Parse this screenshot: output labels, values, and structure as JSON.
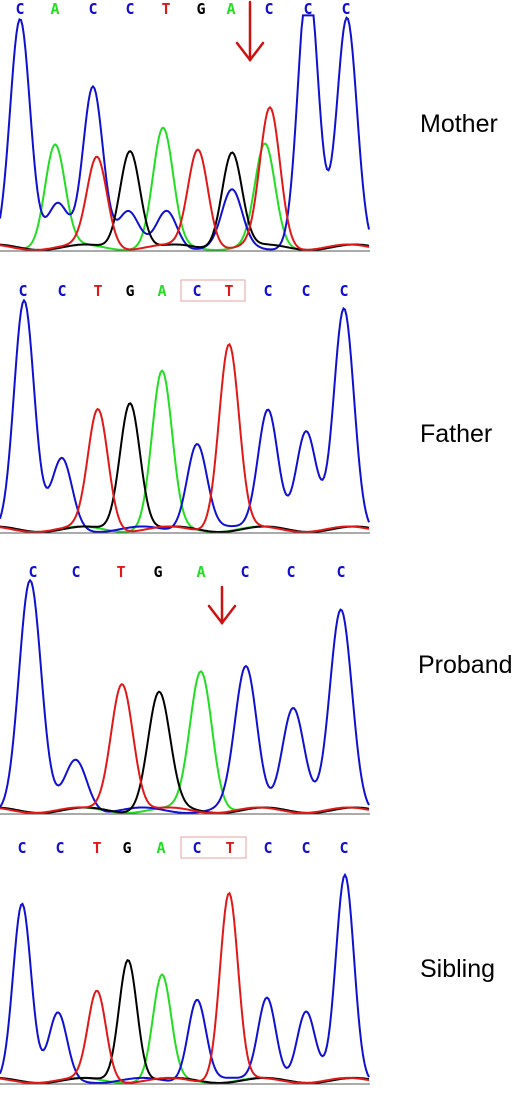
{
  "colors": {
    "A": "#22dd22",
    "C": "#1010d0",
    "G": "#000000",
    "T": "#e01818",
    "arrow": "#cc1111",
    "box": "#e8a0a0"
  },
  "icons": {
    "arrow": "down-arrow-icon"
  },
  "panels": [
    {
      "label": "Mother",
      "bases": [
        "C",
        "A",
        "C",
        "C",
        "T",
        "G",
        "A",
        "C",
        "C",
        "C"
      ],
      "mutation_arrow_at_base": 6,
      "boxed_bases": [],
      "peaks": [
        {
          "base": "C",
          "level": 1.0
        },
        {
          "base": "A",
          "level": 0.45
        },
        {
          "base": "C",
          "level": 0.18
        },
        {
          "base": "C",
          "level": 0.71
        },
        {
          "base": "T",
          "level": 0.39
        },
        {
          "base": "C",
          "level": 0.15
        },
        {
          "base": "G",
          "level": 0.43
        },
        {
          "base": "A",
          "level": 0.51
        },
        {
          "base": "C",
          "level": 0.16
        },
        {
          "base": "T",
          "level": 0.43
        },
        {
          "base": "G",
          "level": 0.42
        },
        {
          "base": "C",
          "level": 0.24
        },
        {
          "base": "T",
          "level": 0.6
        },
        {
          "base": "A",
          "level": 0.44
        },
        {
          "base": "C",
          "level": 0.67
        },
        {
          "base": "C",
          "level": 0.5
        },
        {
          "base": "C",
          "level": 1.0
        }
      ]
    },
    {
      "label": "Father",
      "bases": [
        "C",
        "C",
        "T",
        "G",
        "A",
        "C",
        "T",
        "C",
        "C",
        "C"
      ],
      "mutation_arrow_at_base": null,
      "boxed_bases": [
        5,
        6
      ],
      "peaks": [
        {
          "base": "C",
          "level": 1.0
        },
        {
          "base": "C",
          "level": 0.3
        },
        {
          "base": "T",
          "level": 0.52
        },
        {
          "base": "G",
          "level": 0.56
        },
        {
          "base": "A",
          "level": 0.68
        },
        {
          "base": "C",
          "level": 0.38
        },
        {
          "base": "T",
          "level": 0.81
        },
        {
          "base": "C",
          "level": 0.53
        },
        {
          "base": "C",
          "level": 0.42
        },
        {
          "base": "C",
          "level": 0.96
        }
      ]
    },
    {
      "label": "Proband",
      "bases": [
        "C",
        "C",
        "T",
        "G",
        "A",
        "C",
        "C",
        "C"
      ],
      "mutation_arrow_at_base": 4,
      "boxed_bases": [],
      "peaks": [
        {
          "base": "C",
          "level": 1.0
        },
        {
          "base": "C",
          "level": 0.22
        },
        {
          "base": "T",
          "level": 0.56
        },
        {
          "base": "G",
          "level": 0.51
        },
        {
          "base": "A",
          "level": 0.61
        },
        {
          "base": "C",
          "level": 0.62
        },
        {
          "base": "C",
          "level": 0.45
        },
        {
          "base": "C",
          "level": 0.87
        }
      ]
    },
    {
      "label": "Sibling",
      "bases": [
        "C",
        "C",
        "T",
        "G",
        "A",
        "C",
        "T",
        "C",
        "C",
        "C"
      ],
      "mutation_arrow_at_base": null,
      "boxed_bases": [
        5,
        6
      ],
      "peaks": [
        {
          "base": "C",
          "level": 0.84
        },
        {
          "base": "C",
          "level": 0.31
        },
        {
          "base": "T",
          "level": 0.42
        },
        {
          "base": "G",
          "level": 0.58
        },
        {
          "base": "A",
          "level": 0.49
        },
        {
          "base": "C",
          "level": 0.39
        },
        {
          "base": "T",
          "level": 0.89
        },
        {
          "base": "C",
          "level": 0.4
        },
        {
          "base": "C",
          "level": 0.32
        },
        {
          "base": "C",
          "level": 0.97
        }
      ]
    }
  ]
}
